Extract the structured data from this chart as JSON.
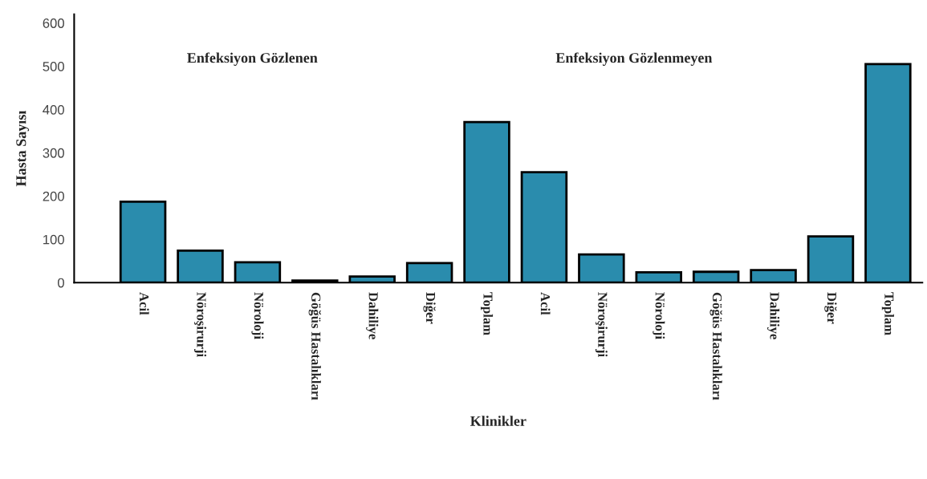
{
  "chart_data": {
    "type": "bar",
    "categories": [
      "Acil",
      "Nöroşirurji",
      "Nöroloji",
      "Göğüs Hastalıkları",
      "Dahiliye",
      "Diğer",
      "Toplam",
      "Acil",
      "Nöroşirurji",
      "Nöroloji",
      "Göğüs Hastalıkları",
      "Dahiliye",
      "Diğer",
      "Toplam"
    ],
    "values": [
      187,
      74,
      47,
      5,
      14,
      45,
      371,
      255,
      65,
      24,
      25,
      29,
      107,
      505
    ],
    "color": "#2a8cad",
    "xlabel": "Klinikler",
    "ylabel": "Hasta Sayısı",
    "annotations": [
      "Enfeksiyon Gözlenen",
      "Enfeksiyon Gözlenmeyen"
    ],
    "ylim": [
      0,
      620
    ],
    "yticks": [
      0,
      100,
      200,
      300,
      400,
      500,
      600
    ],
    "grid": false,
    "legend": false
  }
}
